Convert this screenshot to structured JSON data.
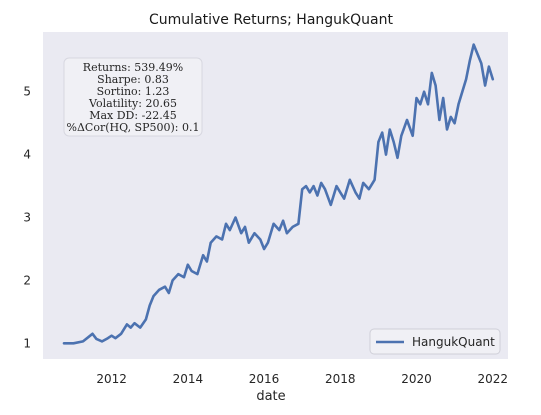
{
  "colors": {
    "plot_background": "#eaeaf2",
    "line": "#4c72b0",
    "grid": "#ffffff"
  },
  "chart_data": {
    "type": "line",
    "title": "Cumulative Returns; HangukQuant",
    "xlabel": "date",
    "ylabel": "",
    "xlim": [
      2010.2,
      2022.4
    ],
    "ylim": [
      0.75,
      5.95
    ],
    "x_ticks": [
      2012,
      2014,
      2016,
      2018,
      2020,
      2022
    ],
    "x_tick_labels": [
      "2012",
      "2014",
      "2016",
      "2018",
      "2020",
      "2022"
    ],
    "y_ticks": [
      1,
      2,
      3,
      4,
      5
    ],
    "y_tick_labels": [
      "1",
      "2",
      "3",
      "4",
      "5"
    ],
    "grid": false,
    "legend_placement": "lower-right",
    "stats_box": [
      "Returns: 539.49%",
      "Sharpe: 0.83",
      "Sortino: 1.23",
      "Volatility: 20.65",
      "Max DD: -22.45",
      "%ΔCor(HQ, SP500): 0.1"
    ],
    "series": [
      {
        "name": "HangukQuant",
        "x": [
          2010.75,
          2011.0,
          2011.25,
          2011.5,
          2011.6,
          2011.75,
          2011.9,
          2012.0,
          2012.1,
          2012.25,
          2012.4,
          2012.5,
          2012.6,
          2012.75,
          2012.9,
          2013.0,
          2013.1,
          2013.25,
          2013.4,
          2013.5,
          2013.6,
          2013.75,
          2013.9,
          2014.0,
          2014.1,
          2014.25,
          2014.4,
          2014.5,
          2014.6,
          2014.75,
          2014.9,
          2015.0,
          2015.1,
          2015.25,
          2015.4,
          2015.5,
          2015.6,
          2015.75,
          2015.9,
          2016.0,
          2016.1,
          2016.25,
          2016.4,
          2016.5,
          2016.6,
          2016.75,
          2016.9,
          2017.0,
          2017.1,
          2017.2,
          2017.3,
          2017.4,
          2017.5,
          2017.6,
          2017.75,
          2017.9,
          2018.0,
          2018.1,
          2018.25,
          2018.4,
          2018.5,
          2018.6,
          2018.75,
          2018.9,
          2019.0,
          2019.1,
          2019.2,
          2019.3,
          2019.4,
          2019.5,
          2019.6,
          2019.75,
          2019.9,
          2020.0,
          2020.1,
          2020.2,
          2020.3,
          2020.4,
          2020.5,
          2020.6,
          2020.7,
          2020.8,
          2020.9,
          2021.0,
          2021.1,
          2021.2,
          2021.3,
          2021.4,
          2021.5,
          2021.6,
          2021.7,
          2021.8,
          2021.9,
          2022.0
        ],
        "values": [
          1.0,
          1.0,
          1.03,
          1.15,
          1.07,
          1.03,
          1.08,
          1.12,
          1.08,
          1.15,
          1.3,
          1.25,
          1.32,
          1.25,
          1.38,
          1.6,
          1.75,
          1.85,
          1.9,
          1.8,
          2.0,
          2.1,
          2.05,
          2.25,
          2.15,
          2.1,
          2.4,
          2.3,
          2.6,
          2.7,
          2.65,
          2.9,
          2.8,
          3.0,
          2.75,
          2.85,
          2.6,
          2.75,
          2.65,
          2.5,
          2.6,
          2.9,
          2.8,
          2.95,
          2.75,
          2.85,
          2.9,
          3.45,
          3.5,
          3.4,
          3.5,
          3.35,
          3.55,
          3.45,
          3.2,
          3.5,
          3.4,
          3.3,
          3.6,
          3.4,
          3.3,
          3.55,
          3.45,
          3.6,
          4.2,
          4.35,
          4.0,
          4.4,
          4.2,
          3.95,
          4.3,
          4.55,
          4.3,
          4.9,
          4.8,
          5.0,
          4.8,
          5.3,
          5.1,
          4.55,
          4.9,
          4.4,
          4.6,
          4.5,
          4.8,
          5.0,
          5.2,
          5.5,
          5.75,
          5.6,
          5.45,
          5.1,
          5.4,
          5.2
        ]
      }
    ]
  }
}
